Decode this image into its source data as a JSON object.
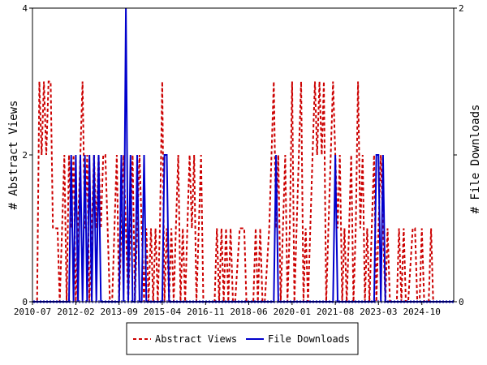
{
  "chart_data": {
    "type": "line",
    "title": "",
    "y_left_label": "# Abstract Views",
    "y_right_label": "# File Downloads",
    "y_left_range": [
      0,
      4
    ],
    "y_right_range": [
      0,
      2
    ],
    "y_left_ticks": [
      "0",
      "2",
      "4"
    ],
    "y_right_ticks": [
      "0",
      "1",
      "2"
    ],
    "x_range": [
      "2010-07",
      "2025-12"
    ],
    "x_tick_labels": [
      "2010-07",
      "2012-02",
      "2013-09",
      "2015-04",
      "2016-11",
      "2018-06",
      "2020-01",
      "2021-08",
      "2023-03",
      "2024-10"
    ],
    "legend_position": "bottom-center",
    "series": [
      {
        "name": "Abstract Views",
        "color": "#cc0000",
        "style": "dashed",
        "axis": "left",
        "points": [
          [
            "2010-07-01",
            0
          ],
          [
            "2010-09-01",
            0
          ],
          [
            "2010-10-01",
            3
          ],
          [
            "2010-11-01",
            2
          ],
          [
            "2010-12-01",
            3
          ],
          [
            "2011-01-01",
            2
          ],
          [
            "2011-02-01",
            3
          ],
          [
            "2011-03-01",
            3
          ],
          [
            "2011-04-01",
            1
          ],
          [
            "2011-06-01",
            1
          ],
          [
            "2011-07-01",
            0
          ],
          [
            "2011-08-01",
            1
          ],
          [
            "2011-09-01",
            2
          ],
          [
            "2011-10-01",
            0
          ],
          [
            "2011-11-01",
            2
          ],
          [
            "2011-12-01",
            1
          ],
          [
            "2012-01-01",
            2
          ],
          [
            "2012-02-01",
            0
          ],
          [
            "2012-03-01",
            1
          ],
          [
            "2012-04-01",
            2
          ],
          [
            "2012-05-01",
            3
          ],
          [
            "2012-06-01",
            1
          ],
          [
            "2012-07-01",
            2
          ],
          [
            "2012-08-01",
            0
          ],
          [
            "2012-09-01",
            1
          ],
          [
            "2012-10-01",
            2
          ],
          [
            "2012-11-01",
            1
          ],
          [
            "2012-12-01",
            2
          ],
          [
            "2013-01-01",
            1
          ],
          [
            "2013-02-01",
            2
          ],
          [
            "2013-03-01",
            2
          ],
          [
            "2013-04-01",
            1
          ],
          [
            "2013-05-01",
            0
          ],
          [
            "2013-06-01",
            0
          ],
          [
            "2013-07-01",
            1
          ],
          [
            "2013-08-01",
            2
          ],
          [
            "2013-09-01",
            0
          ],
          [
            "2013-10-01",
            1
          ],
          [
            "2013-11-01",
            2
          ],
          [
            "2013-12-01",
            1
          ],
          [
            "2014-01-01",
            0
          ],
          [
            "2014-02-01",
            1
          ],
          [
            "2014-03-01",
            2
          ],
          [
            "2014-04-01",
            0
          ],
          [
            "2014-05-01",
            1
          ],
          [
            "2014-06-01",
            2
          ],
          [
            "2014-07-01",
            1
          ],
          [
            "2014-08-01",
            0
          ],
          [
            "2014-09-01",
            1
          ],
          [
            "2014-10-01",
            0
          ],
          [
            "2014-11-01",
            1
          ],
          [
            "2014-12-01",
            0
          ],
          [
            "2015-01-01",
            1
          ],
          [
            "2015-02-01",
            0
          ],
          [
            "2015-03-01",
            1
          ],
          [
            "2015-04-01",
            3
          ],
          [
            "2015-05-01",
            0
          ],
          [
            "2015-06-01",
            1
          ],
          [
            "2015-07-01",
            0
          ],
          [
            "2015-08-01",
            1
          ],
          [
            "2015-09-01",
            0
          ],
          [
            "2015-10-01",
            1
          ],
          [
            "2015-11-01",
            2
          ],
          [
            "2015-12-01",
            0
          ],
          [
            "2016-01-01",
            1
          ],
          [
            "2016-02-01",
            0
          ],
          [
            "2016-03-01",
            1
          ],
          [
            "2016-04-01",
            2
          ],
          [
            "2016-05-01",
            1
          ],
          [
            "2016-06-01",
            2
          ],
          [
            "2016-07-01",
            0
          ],
          [
            "2016-08-01",
            1
          ],
          [
            "2016-09-01",
            2
          ],
          [
            "2016-10-01",
            0
          ],
          [
            "2016-11-01",
            0
          ],
          [
            "2017-01-01",
            0
          ],
          [
            "2017-03-01",
            0
          ],
          [
            "2017-04-01",
            1
          ],
          [
            "2017-05-01",
            0
          ],
          [
            "2017-06-01",
            1
          ],
          [
            "2017-07-01",
            0
          ],
          [
            "2017-08-01",
            1
          ],
          [
            "2017-09-01",
            0
          ],
          [
            "2017-10-01",
            1
          ],
          [
            "2017-11-01",
            0
          ],
          [
            "2017-12-01",
            0
          ],
          [
            "2018-02-01",
            1
          ],
          [
            "2018-04-01",
            1
          ],
          [
            "2018-05-01",
            0
          ],
          [
            "2018-06-01",
            0
          ],
          [
            "2018-08-01",
            0
          ],
          [
            "2018-09-01",
            1
          ],
          [
            "2018-10-01",
            0
          ],
          [
            "2018-11-01",
            1
          ],
          [
            "2018-12-01",
            0
          ],
          [
            "2019-01-01",
            0
          ],
          [
            "2019-03-01",
            1
          ],
          [
            "2019-04-01",
            2
          ],
          [
            "2019-05-01",
            3
          ],
          [
            "2019-06-01",
            1
          ],
          [
            "2019-07-01",
            2
          ],
          [
            "2019-08-01",
            0
          ],
          [
            "2019-09-01",
            1
          ],
          [
            "2019-10-01",
            2
          ],
          [
            "2019-11-01",
            0
          ],
          [
            "2019-12-01",
            1
          ],
          [
            "2020-01-01",
            3
          ],
          [
            "2020-02-01",
            0
          ],
          [
            "2020-03-01",
            1
          ],
          [
            "2020-04-01",
            2
          ],
          [
            "2020-05-01",
            3
          ],
          [
            "2020-06-01",
            0
          ],
          [
            "2020-07-01",
            1
          ],
          [
            "2020-08-01",
            0
          ],
          [
            "2020-09-01",
            1
          ],
          [
            "2020-10-01",
            2
          ],
          [
            "2020-11-01",
            3
          ],
          [
            "2020-12-01",
            2
          ],
          [
            "2021-01-01",
            3
          ],
          [
            "2021-02-01",
            2
          ],
          [
            "2021-03-01",
            3
          ],
          [
            "2021-04-01",
            0
          ],
          [
            "2021-05-01",
            1
          ],
          [
            "2021-06-01",
            2
          ],
          [
            "2021-07-01",
            3
          ],
          [
            "2021-08-01",
            2
          ],
          [
            "2021-09-01",
            1
          ],
          [
            "2021-10-01",
            2
          ],
          [
            "2021-11-01",
            0
          ],
          [
            "2021-12-01",
            1
          ],
          [
            "2022-01-01",
            0
          ],
          [
            "2022-02-01",
            1
          ],
          [
            "2022-03-01",
            2
          ],
          [
            "2022-04-01",
            0
          ],
          [
            "2022-05-01",
            1
          ],
          [
            "2022-06-01",
            3
          ],
          [
            "2022-07-01",
            1
          ],
          [
            "2022-08-01",
            2
          ],
          [
            "2022-09-01",
            0
          ],
          [
            "2022-10-01",
            1
          ],
          [
            "2022-11-01",
            0
          ],
          [
            "2022-12-01",
            1
          ],
          [
            "2023-01-01",
            2
          ],
          [
            "2023-02-01",
            0
          ],
          [
            "2023-03-01",
            1
          ],
          [
            "2023-04-01",
            2
          ],
          [
            "2023-05-01",
            1
          ],
          [
            "2023-06-01",
            0
          ],
          [
            "2023-07-01",
            1
          ],
          [
            "2023-08-01",
            0
          ],
          [
            "2023-09-01",
            0
          ],
          [
            "2023-11-01",
            0
          ],
          [
            "2023-12-01",
            1
          ],
          [
            "2024-01-01",
            0
          ],
          [
            "2024-02-01",
            1
          ],
          [
            "2024-03-01",
            0
          ],
          [
            "2024-04-01",
            0
          ],
          [
            "2024-06-01",
            1
          ],
          [
            "2024-07-01",
            1
          ],
          [
            "2024-08-01",
            0
          ],
          [
            "2024-09-01",
            0
          ],
          [
            "2024-10-01",
            1
          ],
          [
            "2024-11-01",
            0
          ],
          [
            "2024-12-01",
            0
          ],
          [
            "2025-01-01",
            0
          ],
          [
            "2025-02-01",
            1
          ],
          [
            "2025-03-01",
            0
          ],
          [
            "2025-04-01",
            0
          ],
          [
            "2025-12-01",
            0
          ]
        ]
      },
      {
        "name": "File Downloads",
        "color": "#0000cc",
        "style": "solid",
        "axis": "right",
        "points": [
          [
            "2010-07-01",
            0
          ],
          [
            "2011-11-01",
            0
          ],
          [
            "2011-12-01",
            1
          ],
          [
            "2012-01-01",
            0
          ],
          [
            "2012-02-01",
            1
          ],
          [
            "2012-03-01",
            0
          ],
          [
            "2012-04-01",
            1
          ],
          [
            "2012-05-01",
            0
          ],
          [
            "2012-06-01",
            1
          ],
          [
            "2012-07-01",
            0
          ],
          [
            "2012-08-01",
            1
          ],
          [
            "2012-09-01",
            0
          ],
          [
            "2012-10-01",
            1
          ],
          [
            "2012-11-01",
            0
          ],
          [
            "2012-12-01",
            1
          ],
          [
            "2013-01-01",
            0
          ],
          [
            "2013-02-01",
            0
          ],
          [
            "2013-09-01",
            0
          ],
          [
            "2013-10-01",
            1
          ],
          [
            "2013-11-01",
            0
          ],
          [
            "2013-12-01",
            2
          ],
          [
            "2014-01-01",
            0
          ],
          [
            "2014-02-01",
            1
          ],
          [
            "2014-03-01",
            0
          ],
          [
            "2014-04-01",
            0
          ],
          [
            "2014-05-01",
            1
          ],
          [
            "2014-06-01",
            0
          ],
          [
            "2014-07-01",
            0
          ],
          [
            "2014-08-01",
            1
          ],
          [
            "2014-09-01",
            0
          ],
          [
            "2014-10-01",
            0
          ],
          [
            "2015-04-01",
            0
          ],
          [
            "2015-05-01",
            1
          ],
          [
            "2015-06-01",
            1
          ],
          [
            "2015-07-01",
            0
          ],
          [
            "2015-08-01",
            0
          ],
          [
            "2019-05-01",
            0
          ],
          [
            "2019-06-01",
            1
          ],
          [
            "2019-07-01",
            0
          ],
          [
            "2019-08-01",
            0
          ],
          [
            "2021-07-01",
            0
          ],
          [
            "2021-08-01",
            1
          ],
          [
            "2021-09-01",
            0
          ],
          [
            "2021-10-01",
            0
          ],
          [
            "2023-01-01",
            0
          ],
          [
            "2023-02-01",
            1
          ],
          [
            "2023-03-01",
            1
          ],
          [
            "2023-04-01",
            0
          ],
          [
            "2023-05-01",
            1
          ],
          [
            "2023-06-01",
            0
          ],
          [
            "2023-07-01",
            0
          ],
          [
            "2025-12-01",
            0
          ]
        ]
      }
    ]
  }
}
